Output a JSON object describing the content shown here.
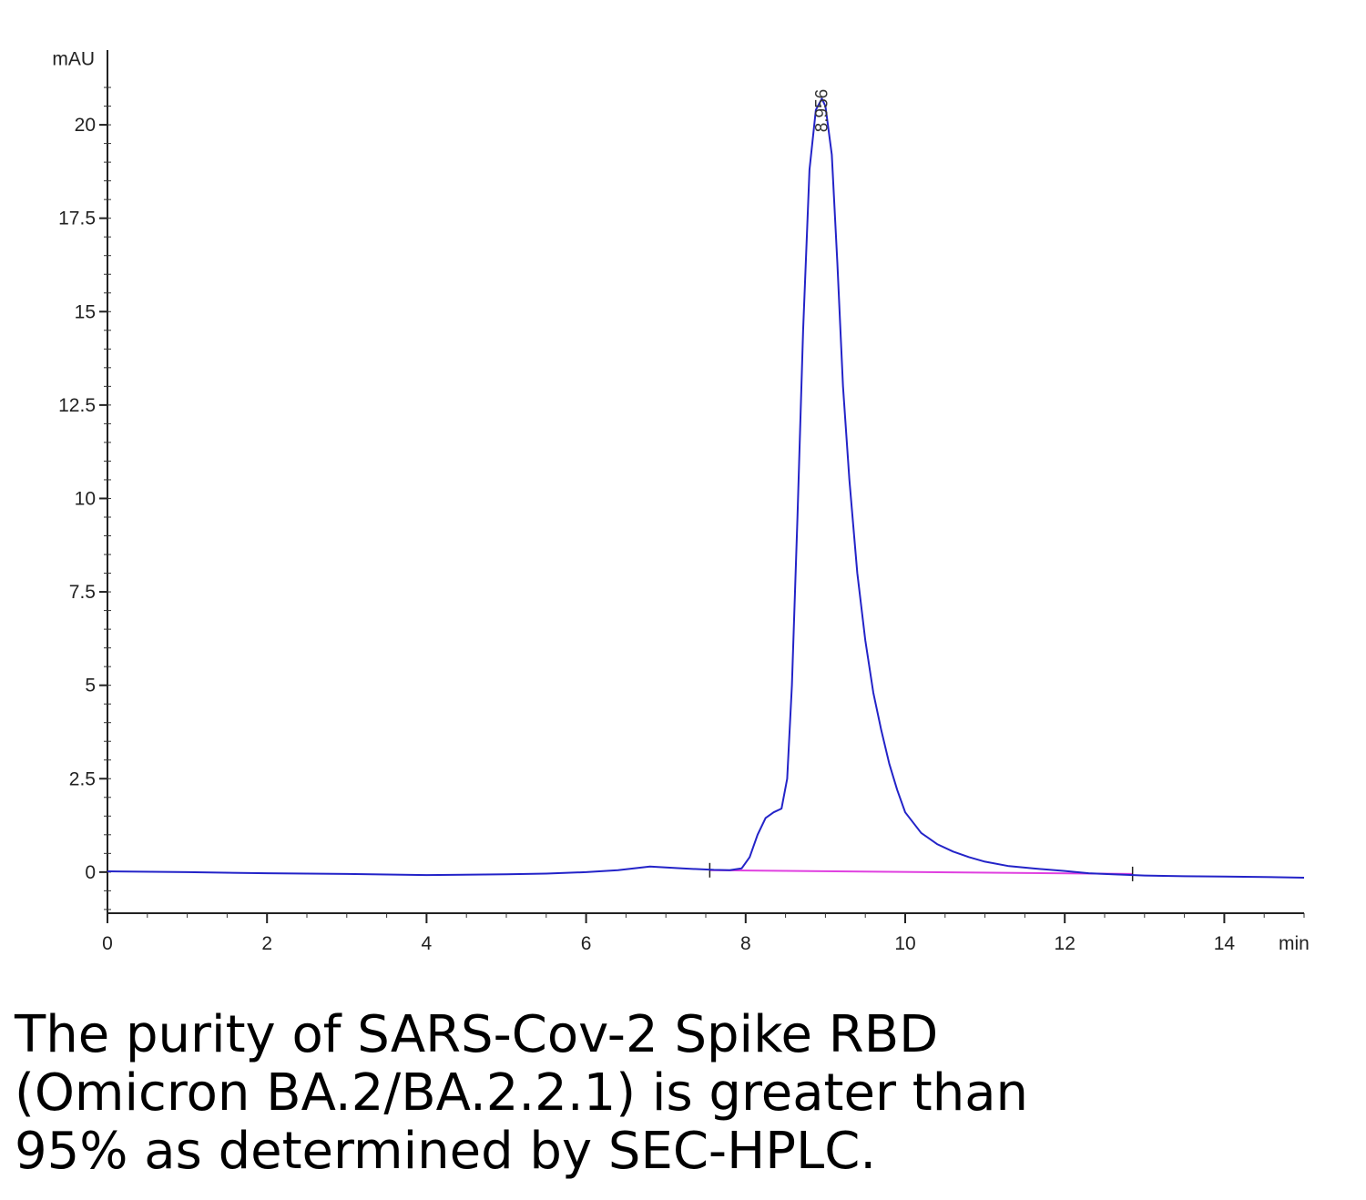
{
  "chart_data": {
    "type": "line",
    "title": "",
    "xlabel": "min",
    "ylabel": "mAU",
    "xlim": [
      0,
      15
    ],
    "ylim": [
      -1.1,
      22
    ],
    "x_ticks": [
      0,
      2,
      4,
      6,
      8,
      10,
      12,
      14
    ],
    "y_ticks": [
      0,
      2.5,
      5,
      7.5,
      10,
      12.5,
      15,
      17.5,
      20
    ],
    "x_tick_labels": [
      "0",
      "2",
      "4",
      "6",
      "8",
      "10",
      "12",
      "14"
    ],
    "y_tick_labels": [
      "0",
      "2.5",
      "5",
      "7.5",
      "10",
      "12.5",
      "15",
      "17.5",
      "20"
    ],
    "grid": false,
    "peak_label": "8.956",
    "peak_x": 8.956,
    "series": [
      {
        "color": "#2323c8",
        "x": [
          0,
          1,
          2,
          3,
          4,
          5,
          5.5,
          6,
          6.4,
          6.8,
          7.2,
          7.6,
          7.8,
          7.95,
          8.05,
          8.15,
          8.25,
          8.35,
          8.45,
          8.52,
          8.58,
          8.65,
          8.72,
          8.8,
          8.88,
          8.956,
          9.0,
          9.08,
          9.15,
          9.22,
          9.3,
          9.4,
          9.5,
          9.6,
          9.7,
          9.8,
          9.9,
          10.0,
          10.2,
          10.4,
          10.6,
          10.8,
          11.0,
          11.3,
          11.6,
          12.0,
          12.3,
          12.6,
          13.0,
          13.5,
          14.0,
          14.5,
          15.0
        ],
        "y": [
          0.02,
          0.0,
          -0.03,
          -0.05,
          -0.08,
          -0.06,
          -0.04,
          0.0,
          0.05,
          0.15,
          0.1,
          0.06,
          0.05,
          0.1,
          0.4,
          1.0,
          1.45,
          1.6,
          1.7,
          2.5,
          5.0,
          9.5,
          14.5,
          18.8,
          20.4,
          20.7,
          20.5,
          19.2,
          16.3,
          13.0,
          10.5,
          8.0,
          6.2,
          4.8,
          3.8,
          2.9,
          2.2,
          1.6,
          1.05,
          0.75,
          0.55,
          0.4,
          0.28,
          0.16,
          0.1,
          0.03,
          -0.03,
          -0.06,
          -0.09,
          -0.11,
          -0.12,
          -0.13,
          -0.15
        ]
      }
    ],
    "baseline": {
      "color": "#e040e0",
      "x": [
        7.55,
        12.85
      ],
      "y": [
        0.05,
        -0.05
      ]
    }
  },
  "caption_lines": [
    "The purity of SARS-Cov-2 Spike RBD",
    "(Omicron BA.2/BA.2.2.1) is greater than",
    "95% as determined by SEC-HPLC."
  ]
}
